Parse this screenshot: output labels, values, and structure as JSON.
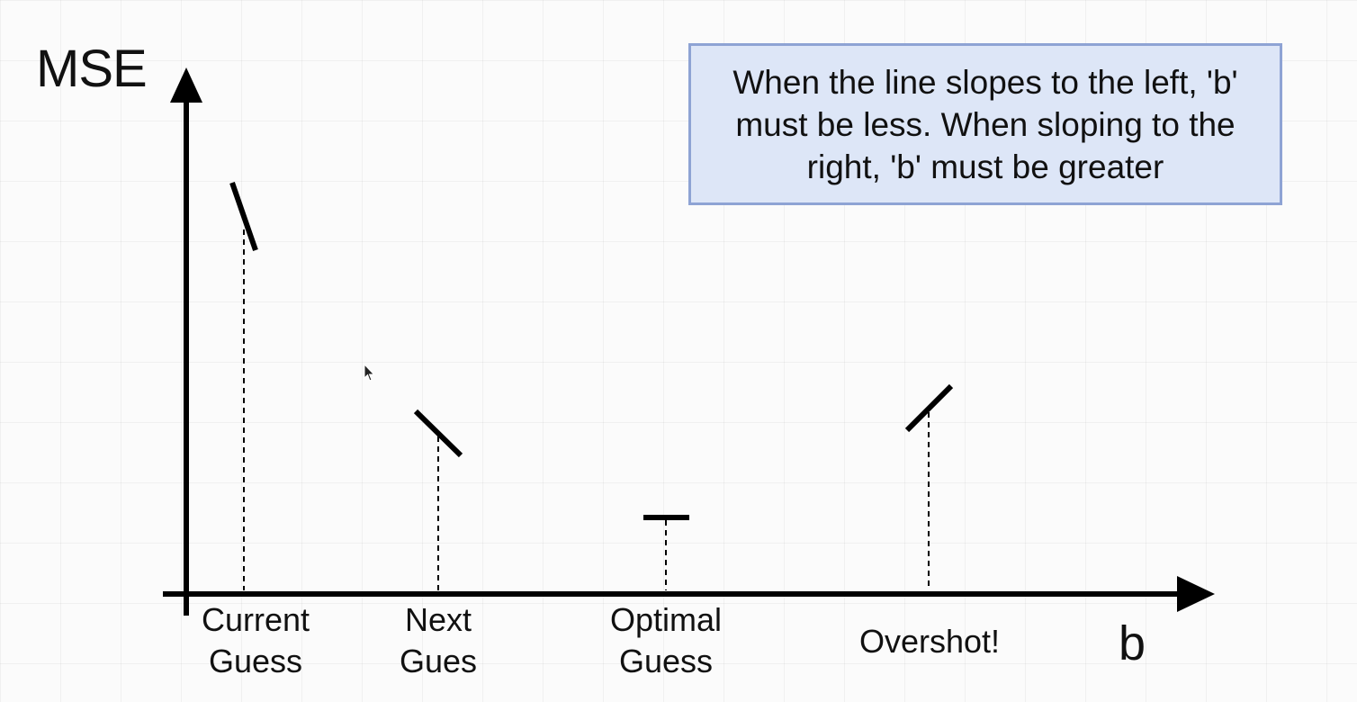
{
  "diagram": {
    "y_axis_label": "MSE",
    "x_axis_label": "b",
    "note": "When the line slopes to the left, 'b' must be less.  When sloping to the right, 'b' must be greater",
    "guesses": [
      {
        "label": "Current\nGuess",
        "slope": "steep-negative"
      },
      {
        "label": "Next\nGues",
        "slope": "negative"
      },
      {
        "label": "Optimal\nGuess",
        "slope": "flat"
      },
      {
        "label": "Overshot!",
        "slope": "positive"
      }
    ]
  }
}
